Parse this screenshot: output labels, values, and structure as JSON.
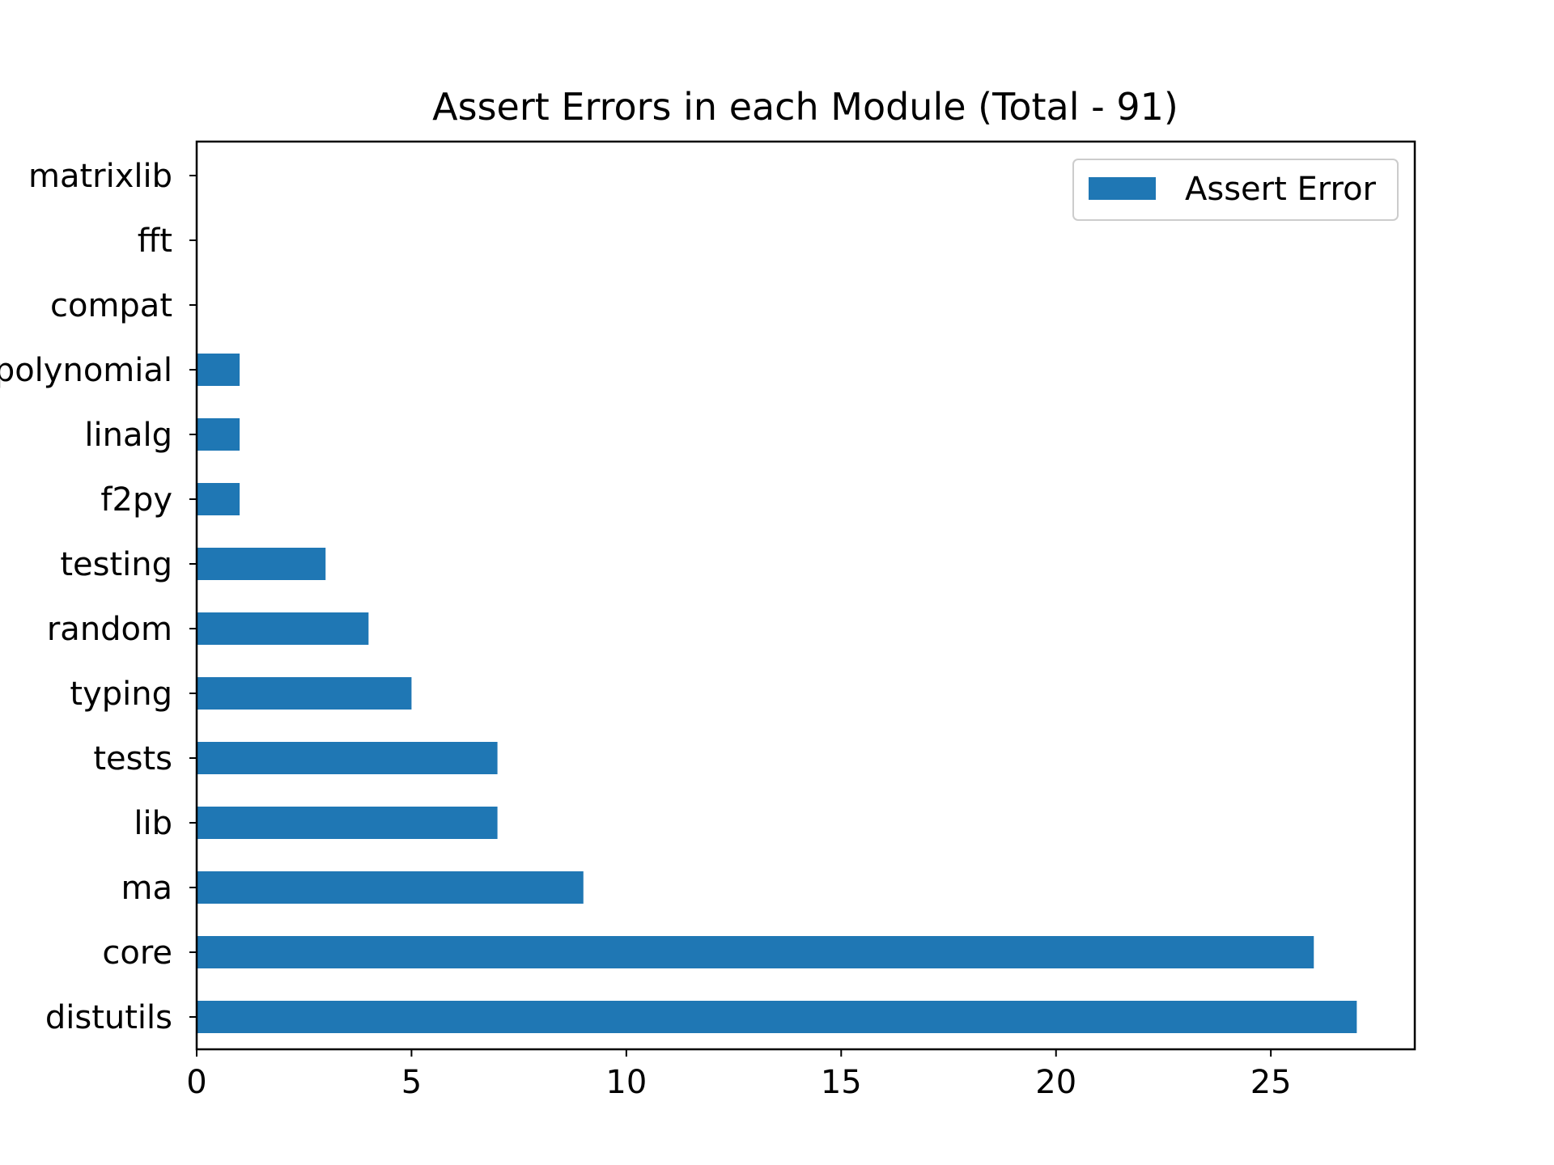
{
  "chart_data": {
    "type": "bar",
    "orientation": "horizontal",
    "title": "Assert Errors in each Module (Total - 91)",
    "xlabel": "",
    "ylabel": "",
    "categories": [
      "distutils",
      "core",
      "ma",
      "lib",
      "tests",
      "typing",
      "random",
      "testing",
      "f2py",
      "linalg",
      "polynomial",
      "compat",
      "fft",
      "matrixlib"
    ],
    "series": [
      {
        "name": "Assert Error",
        "values": [
          27,
          26,
          9,
          7,
          7,
          5,
          4,
          3,
          1,
          1,
          1,
          0,
          0,
          0
        ],
        "color": "#1f77b4"
      }
    ],
    "xlim": [
      0,
      28.35
    ],
    "xticks": [
      0,
      5,
      10,
      15,
      20,
      25
    ],
    "grid": false,
    "legend_position": "top-right"
  }
}
